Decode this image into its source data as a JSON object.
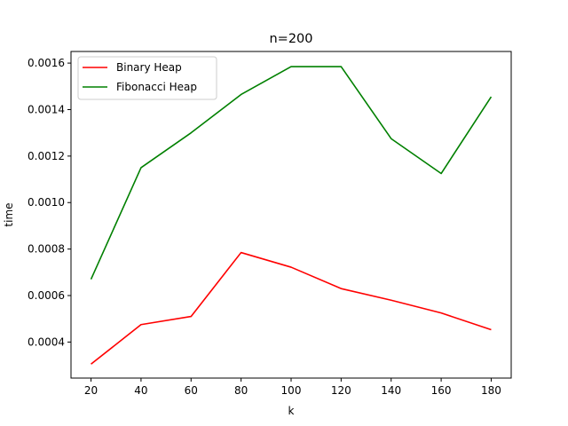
{
  "chart_data": {
    "type": "line",
    "title": "n=200",
    "xlabel": "k",
    "ylabel": "time",
    "x": [
      20,
      40,
      60,
      80,
      100,
      120,
      140,
      160,
      180
    ],
    "xlim": [
      12,
      188
    ],
    "ylim": [
      0.000245,
      0.00165
    ],
    "xticks": [
      20,
      40,
      60,
      80,
      100,
      120,
      140,
      160,
      180
    ],
    "xtick_labels": [
      "20",
      "40",
      "60",
      "80",
      "100",
      "120",
      "140",
      "160",
      "180"
    ],
    "yticks": [
      0.0004,
      0.0006,
      0.0008,
      0.001,
      0.0012,
      0.0014,
      0.0016
    ],
    "ytick_labels": [
      "0.0004",
      "0.0006",
      "0.0008",
      "0.0010",
      "0.0012",
      "0.0014",
      "0.0016"
    ],
    "grid": false,
    "legend_position": "top-left",
    "series": [
      {
        "name": "Binary Heap",
        "color": "#ff0000",
        "values": [
          0.000305,
          0.000475,
          0.00051,
          0.000785,
          0.000722,
          0.00063,
          0.00058,
          0.000525,
          0.000453
        ]
      },
      {
        "name": "Fibonacci Heap",
        "color": "#008000",
        "values": [
          0.00067,
          0.00115,
          0.0013,
          0.001465,
          0.001585,
          0.001585,
          0.001275,
          0.001125,
          0.001455
        ]
      }
    ]
  }
}
